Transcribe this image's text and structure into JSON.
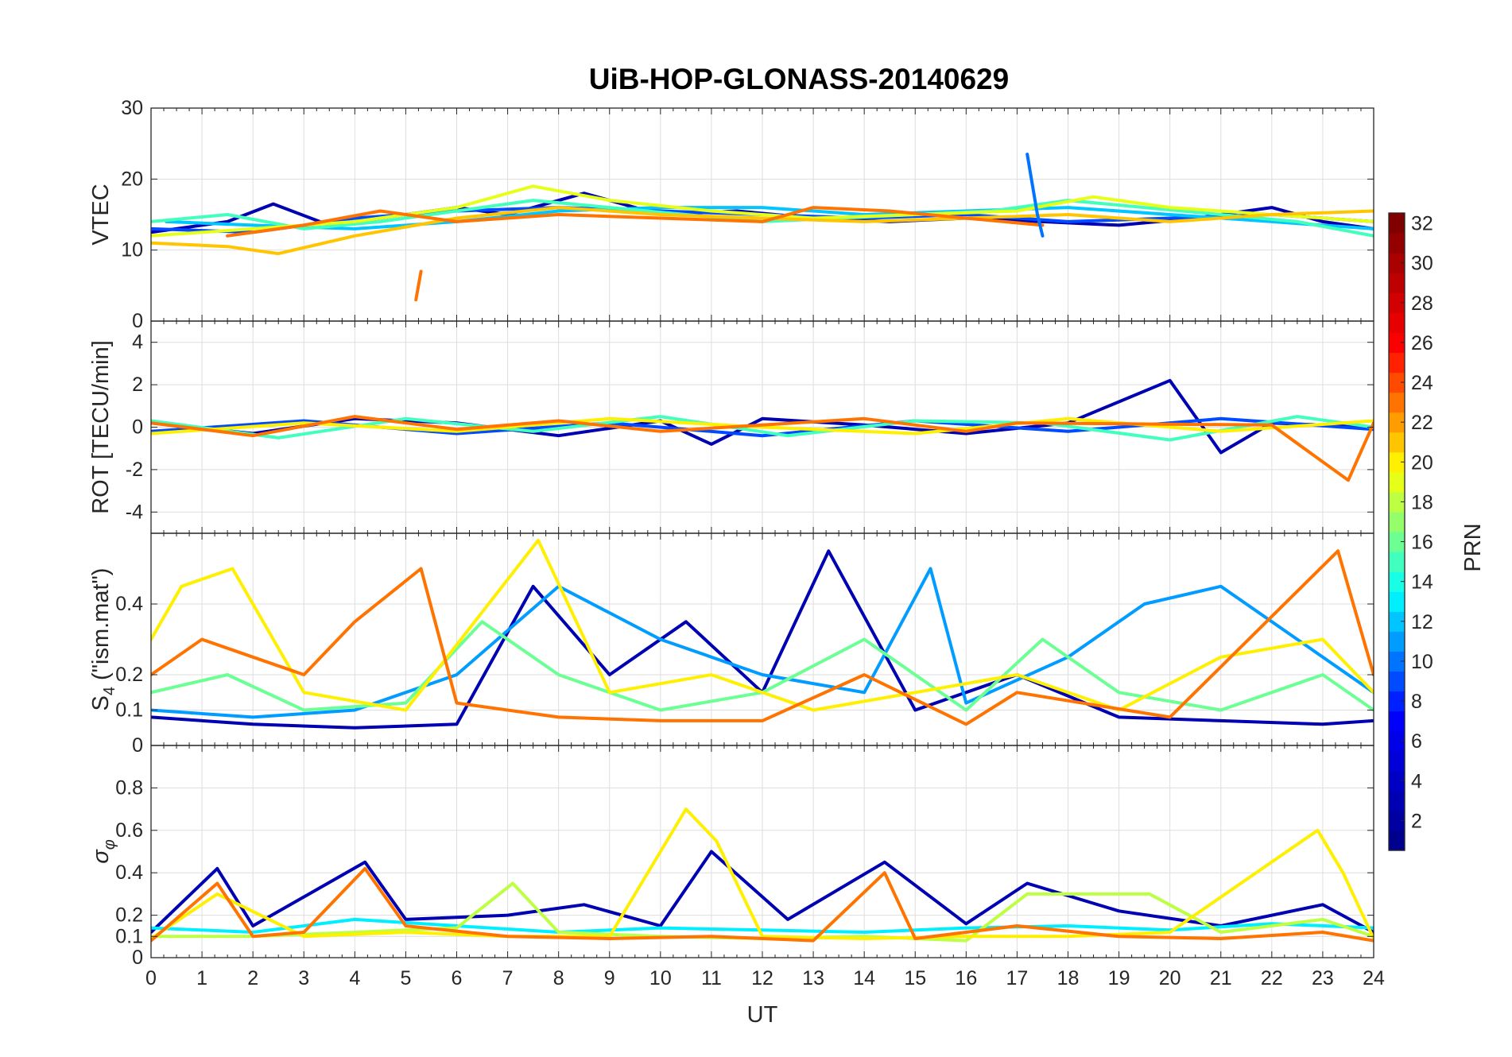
{
  "chart_data": {
    "type": "line",
    "title": "UiB-HOP-GLONASS-20140629",
    "xlabel": "UT",
    "xlim": [
      0,
      24
    ],
    "xticks": [
      "0",
      "1",
      "2",
      "3",
      "4",
      "5",
      "6",
      "7",
      "8",
      "9",
      "10",
      "11",
      "12",
      "13",
      "14",
      "15",
      "16",
      "17",
      "18",
      "19",
      "20",
      "21",
      "22",
      "23",
      "24"
    ],
    "grid": true,
    "panels": [
      {
        "id": "vtec",
        "ylabel": "VTEC",
        "ylim": [
          0,
          30
        ],
        "yticks": [
          0,
          10,
          20,
          30
        ],
        "ytick_labels": [
          "0",
          "10",
          "20",
          "30"
        ],
        "series": [
          {
            "prn": 3,
            "x": [
              0,
              1.5,
              2.4,
              3.5,
              5,
              6,
              7,
              8.5,
              10,
              11.5,
              13,
              14.5,
              16,
              17.5,
              19,
              20.5,
              22,
              23,
              24
            ],
            "y": [
              12.5,
              14,
              16.5,
              13.5,
              15,
              16,
              15,
              18,
              15,
              15.5,
              14.5,
              14,
              14.5,
              14,
              13.5,
              14.5,
              16,
              14,
              13
            ]
          },
          {
            "prn": 9,
            "x": [
              0,
              2,
              4,
              6,
              8,
              10,
              12,
              14,
              16,
              18,
              20,
              22,
              24
            ],
            "y": [
              13,
              12.5,
              14.5,
              15.5,
              16,
              15.5,
              15,
              14.5,
              15,
              14,
              14.5,
              15,
              14
            ]
          },
          {
            "prn": 12,
            "x": [
              0.3,
              2,
              4,
              6,
              8,
              10,
              12,
              14,
              16,
              18,
              20,
              22,
              24
            ],
            "y": [
              14,
              13.5,
              13,
              14,
              15.5,
              16,
              16,
              15,
              15.5,
              16,
              15,
              14,
              13
            ]
          },
          {
            "prn": 15,
            "x": [
              0,
              1.5,
              3,
              4.5,
              6,
              7.5,
              9,
              10.5,
              12,
              13.5,
              15,
              16.5,
              18,
              19.5,
              21,
              22.5,
              24
            ],
            "y": [
              14,
              15,
              13,
              14,
              15.5,
              17,
              16,
              15,
              14,
              14.5,
              15,
              15.5,
              17,
              16,
              15,
              14,
              12
            ]
          },
          {
            "prn": 19,
            "x": [
              0,
              2,
              4,
              6,
              7.5,
              9,
              11,
              13,
              15,
              17,
              18.5,
              20,
              22,
              24
            ],
            "y": [
              12,
              13,
              14,
              16,
              19,
              17,
              15.5,
              14.5,
              15,
              15.5,
              17.5,
              16,
              15,
              14
            ]
          },
          {
            "prn": 21,
            "x": [
              0,
              1.5,
              2.5,
              4,
              6,
              8,
              10,
              12,
              14,
              16,
              18,
              20,
              22,
              24
            ],
            "y": [
              11,
              10.5,
              9.5,
              12,
              14.5,
              16,
              15,
              14.5,
              14,
              14.5,
              15,
              14,
              15,
              15.5
            ]
          },
          {
            "prn": 23,
            "x": [
              1.5,
              3,
              4.5,
              6,
              8,
              10,
              12,
              13,
              14.5,
              16,
              17.5
            ],
            "y": [
              12,
              13.5,
              15.5,
              14,
              15,
              14.5,
              14,
              16,
              15.5,
              14.5,
              13.5
            ]
          },
          {
            "prn": 10,
            "x": [
              17.2,
              17.4,
              17.5
            ],
            "y": [
              23.5,
              15,
              12
            ]
          },
          {
            "prn": 23,
            "x": [
              5.2,
              5.25,
              5.3
            ],
            "y": [
              3,
              5,
              7
            ]
          }
        ]
      },
      {
        "id": "rot",
        "ylabel": "ROT [TECU/min]",
        "ylim": [
          -5,
          5
        ],
        "yticks": [
          -4,
          -2,
          0,
          2,
          4
        ],
        "ytick_labels": [
          "-4",
          "-2",
          "0",
          "2",
          "4"
        ],
        "series": [
          {
            "prn": 3,
            "x": [
              0,
              2,
              4,
              6,
              8,
              10,
              11,
              12,
              14,
              16,
              18,
              20,
              21,
              22,
              24
            ],
            "y": [
              0.2,
              -0.3,
              0.4,
              0.2,
              -0.4,
              0.3,
              -0.8,
              0.4,
              0.1,
              -0.3,
              0.2,
              2.2,
              -1.2,
              0.2,
              0.0
            ]
          },
          {
            "prn": 9,
            "x": [
              0,
              3,
              6,
              9,
              12,
              15,
              18,
              21,
              24
            ],
            "y": [
              -0.2,
              0.3,
              -0.3,
              0.2,
              -0.4,
              0.3,
              -0.2,
              0.4,
              -0.1
            ]
          },
          {
            "prn": 15,
            "x": [
              0,
              2.5,
              5,
              7.5,
              10,
              12.5,
              15,
              17.5,
              20,
              22.5,
              24
            ],
            "y": [
              0.3,
              -0.5,
              0.4,
              -0.2,
              0.5,
              -0.4,
              0.3,
              0.2,
              -0.6,
              0.5,
              0.0
            ]
          },
          {
            "prn": 20,
            "x": [
              0,
              3,
              6,
              9,
              12,
              15,
              18,
              21,
              24
            ],
            "y": [
              -0.3,
              0.2,
              -0.2,
              0.4,
              0.0,
              -0.3,
              0.4,
              -0.2,
              0.3
            ]
          },
          {
            "prn": 23,
            "x": [
              0,
              2,
              4,
              6,
              8,
              10,
              12,
              14,
              16,
              17,
              22,
              23.5,
              24
            ],
            "y": [
              0.2,
              -0.4,
              0.5,
              -0.1,
              0.3,
              -0.2,
              0.1,
              0.4,
              -0.2,
              0.2,
              0.1,
              -2.5,
              0.2
            ]
          }
        ]
      },
      {
        "id": "s4",
        "ylabel": "S4 (\"ism.mat\")",
        "ylim": [
          0,
          0.6
        ],
        "yticks": [
          0,
          0.1,
          0.2,
          0.4
        ],
        "ytick_labels": [
          "0",
          "0.1",
          "0.2",
          "0.4"
        ],
        "series": [
          {
            "prn": 3,
            "x": [
              0,
              2,
              4,
              6,
              7.5,
              9,
              10.5,
              12,
              13.3,
              15,
              17,
              19,
              21,
              23,
              24
            ],
            "y": [
              0.08,
              0.06,
              0.05,
              0.06,
              0.45,
              0.2,
              0.35,
              0.15,
              0.55,
              0.1,
              0.2,
              0.08,
              0.07,
              0.06,
              0.07
            ]
          },
          {
            "prn": 11,
            "x": [
              0,
              2,
              4,
              6,
              8,
              10,
              12,
              14,
              15.3,
              16,
              18,
              19.5,
              21,
              22.5,
              24
            ],
            "y": [
              0.1,
              0.08,
              0.1,
              0.2,
              0.45,
              0.3,
              0.2,
              0.15,
              0.5,
              0.12,
              0.25,
              0.4,
              0.45,
              0.3,
              0.15
            ]
          },
          {
            "prn": 16,
            "x": [
              0,
              1.5,
              3,
              5,
              6.5,
              8,
              10,
              12,
              14,
              16,
              17.5,
              19,
              21,
              23,
              24
            ],
            "y": [
              0.15,
              0.2,
              0.1,
              0.12,
              0.35,
              0.2,
              0.1,
              0.15,
              0.3,
              0.1,
              0.3,
              0.15,
              0.1,
              0.2,
              0.1
            ]
          },
          {
            "prn": 20,
            "x": [
              0,
              0.6,
              1.6,
              3,
              5,
              7.6,
              9,
              11,
              13,
              15,
              17,
              19,
              21,
              23,
              24
            ],
            "y": [
              0.3,
              0.45,
              0.5,
              0.15,
              0.1,
              0.58,
              0.15,
              0.2,
              0.1,
              0.15,
              0.2,
              0.1,
              0.25,
              0.3,
              0.15
            ]
          },
          {
            "prn": 23,
            "x": [
              0,
              1,
              2,
              3,
              4,
              5.3,
              6,
              8,
              10,
              12,
              14,
              16,
              17,
              20,
              23.3,
              24
            ],
            "y": [
              0.2,
              0.3,
              0.25,
              0.2,
              0.35,
              0.5,
              0.12,
              0.08,
              0.07,
              0.07,
              0.2,
              0.06,
              0.15,
              0.08,
              0.55,
              0.2
            ]
          }
        ]
      },
      {
        "id": "sigma",
        "ylabel": "σφ",
        "ylim": [
          0,
          1
        ],
        "yticks": [
          0,
          0.1,
          0.2,
          0.4,
          0.6,
          0.8
        ],
        "ytick_labels": [
          "0",
          "0.1",
          "0.2",
          "0.4",
          "0.6",
          "0.8"
        ],
        "series": [
          {
            "prn": 3,
            "x": [
              0,
              1.3,
              2,
              4.2,
              5,
              7,
              8.5,
              10,
              11,
              12.5,
              14.4,
              16,
              17.2,
              19,
              21,
              23,
              24
            ],
            "y": [
              0.12,
              0.42,
              0.15,
              0.45,
              0.18,
              0.2,
              0.25,
              0.15,
              0.5,
              0.18,
              0.45,
              0.16,
              0.35,
              0.22,
              0.15,
              0.25,
              0.12
            ]
          },
          {
            "prn": 13,
            "x": [
              0,
              2,
              4,
              6,
              8,
              10,
              12,
              14,
              16,
              18,
              20,
              22,
              24
            ],
            "y": [
              0.14,
              0.12,
              0.18,
              0.15,
              0.12,
              0.14,
              0.13,
              0.12,
              0.14,
              0.15,
              0.13,
              0.16,
              0.14
            ]
          },
          {
            "prn": 18,
            "x": [
              0,
              2,
              4,
              6,
              7.1,
              8,
              10,
              12,
              14,
              16,
              17.2,
              19.6,
              21,
              23,
              24
            ],
            "y": [
              0.1,
              0.1,
              0.12,
              0.14,
              0.35,
              0.12,
              0.1,
              0.09,
              0.1,
              0.08,
              0.3,
              0.3,
              0.12,
              0.18,
              0.1
            ]
          },
          {
            "prn": 20,
            "x": [
              0,
              1.3,
              3,
              5,
              7,
              9,
              10.5,
              11.1,
              12,
              14,
              16,
              18,
              20,
              22.9,
              23.4,
              24
            ],
            "y": [
              0.09,
              0.3,
              0.1,
              0.12,
              0.1,
              0.1,
              0.7,
              0.55,
              0.1,
              0.09,
              0.1,
              0.1,
              0.12,
              0.6,
              0.4,
              0.09
            ]
          },
          {
            "prn": 23,
            "x": [
              0,
              1.3,
              2,
              3,
              4.2,
              5,
              7,
              9,
              11,
              13,
              14.4,
              15,
              17,
              19,
              21,
              23,
              24
            ],
            "y": [
              0.08,
              0.35,
              0.1,
              0.12,
              0.42,
              0.15,
              0.1,
              0.09,
              0.1,
              0.08,
              0.4,
              0.09,
              0.15,
              0.1,
              0.09,
              0.12,
              0.08
            ]
          }
        ]
      }
    ],
    "colorbar": {
      "label": "PRN",
      "range": [
        1,
        32
      ],
      "ticks": [
        2,
        4,
        6,
        8,
        10,
        12,
        14,
        16,
        18,
        20,
        22,
        24,
        26,
        28,
        30,
        32
      ],
      "tick_labels": [
        "2",
        "4",
        "6",
        "8",
        "10",
        "12",
        "14",
        "16",
        "18",
        "20",
        "22",
        "24",
        "26",
        "28",
        "30",
        "32"
      ],
      "colormap": "jet",
      "colormap_stops": [
        "#00008f",
        "#0000ff",
        "#00ffff",
        "#ffff00",
        "#ff0000",
        "#800000"
      ]
    }
  }
}
